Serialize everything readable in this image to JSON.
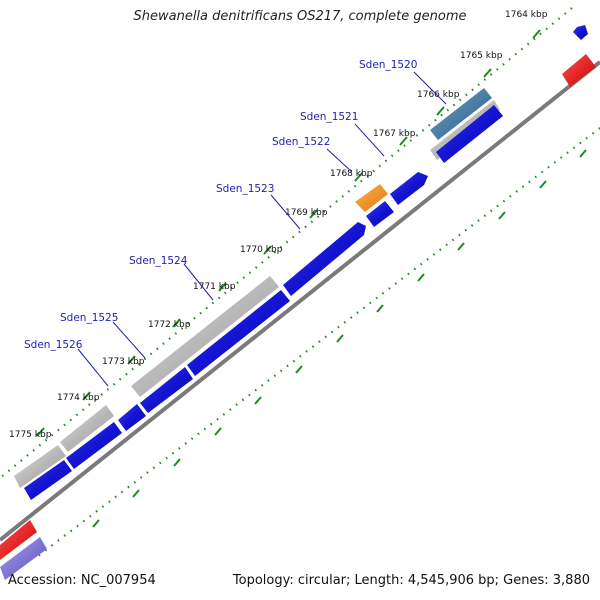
{
  "title": "Shewanella denitrificans OS217, complete genome",
  "footer": {
    "accession": "Accession: NC_007954",
    "summary": "Topology: circular; Length: 4,545,906 bp; Genes: 3,880"
  },
  "colors": {
    "background": "#ffffff",
    "backbone": "#808080",
    "tick_dots": "#1e8a1e",
    "forward_gene": "#1414d2",
    "feature_gray": "#b4b4b4",
    "feature_orange": "#f08c14",
    "feature_steelblue": "#4a7ea6",
    "feature_red": "#e81414",
    "feature_lavender": "#7b72d4",
    "label_text": "#1f1fb0"
  },
  "kbp_ticks": [
    "1764 kbp",
    "1765 kbp",
    "1766 kbp",
    "1767 kbp",
    "1768 kbp",
    "1769 kbp",
    "1770 kbp",
    "1771 kbp",
    "1772 kbp",
    "1773 kbp",
    "1774 kbp",
    "1775 kbp"
  ],
  "gene_labels": [
    "Sden_1520",
    "Sden_1521",
    "Sden_1522",
    "Sden_1523",
    "Sden_1524",
    "Sden_1525",
    "Sden_1526"
  ]
}
